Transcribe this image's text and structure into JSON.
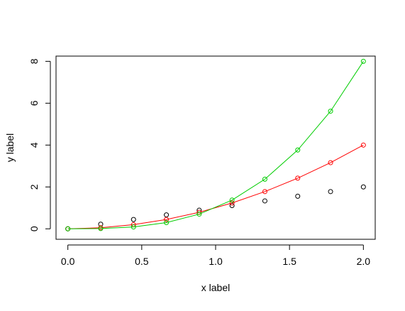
{
  "chart_data": {
    "type": "scatter",
    "title": "",
    "xlabel": "x label",
    "ylabel": "y label",
    "xlim": [
      -0.08,
      2.08
    ],
    "ylim": [
      -0.5,
      8.25
    ],
    "x_ticks": [
      0.0,
      0.5,
      1.0,
      1.5,
      2.0
    ],
    "x_tick_labels": [
      "0.0",
      "0.5",
      "1.0",
      "1.5",
      "2.0"
    ],
    "y_ticks": [
      0,
      2,
      4,
      6,
      8
    ],
    "y_tick_labels": [
      "0",
      "2",
      "4",
      "6",
      "8"
    ],
    "grid": false,
    "legend": "none",
    "x": [
      0.0,
      0.2222,
      0.4444,
      0.6667,
      0.8889,
      1.1111,
      1.3333,
      1.5556,
      1.7778,
      2.0
    ],
    "series": [
      {
        "color": "#000000",
        "style": "points",
        "values": [
          0.0,
          0.2222,
          0.4444,
          0.6667,
          0.8889,
          1.1111,
          1.3333,
          1.5556,
          1.7778,
          2.0
        ]
      },
      {
        "color": "#ff0000",
        "style": "points+line",
        "values": [
          0.0,
          0.0494,
          0.1975,
          0.4444,
          0.7901,
          1.2346,
          1.7778,
          2.4198,
          3.1605,
          4.0
        ]
      },
      {
        "color": "#00cd00",
        "style": "points+line",
        "values": [
          0.0,
          0.011,
          0.0878,
          0.2963,
          0.7023,
          1.3717,
          2.3704,
          3.7641,
          5.6187,
          8.0
        ]
      }
    ]
  }
}
